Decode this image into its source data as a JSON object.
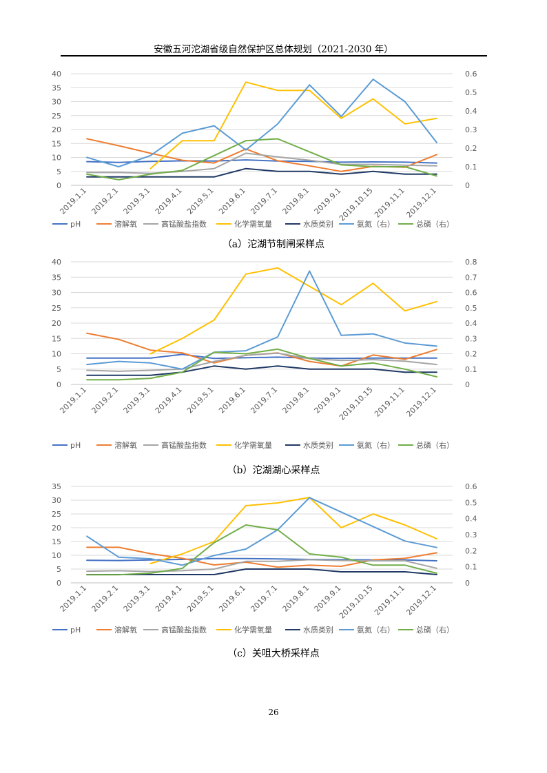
{
  "header": {
    "title": "安徽五河沱湖省级自然保护区总体规划（2021-2030 年）"
  },
  "page_number": "26",
  "colors": {
    "pH": "#4472C4",
    "溶解氧": "#ED7D31",
    "高锰酸盐指数": "#A5A5A5",
    "化学需氧量": "#FFC000",
    "水质类别": "#1F3864",
    "氨氮（右）": "#5B9BD5",
    "总磷（右）": "#70AD47"
  },
  "chart_data": [
    {
      "type": "line",
      "caption": "（a）沱湖节制闸采样点",
      "categories": [
        "2019.1.1",
        "2019.2.1",
        "2019.3.1",
        "2019.4.1",
        "2019.5.1",
        "2019.6.1",
        "2019.7.1",
        "2019.8.1",
        "2019.9.1",
        "2019.10.15",
        "2019.11.1",
        "2019.12.1"
      ],
      "y_left": {
        "min": 0,
        "max": 40,
        "ticks": [
          "0",
          "5",
          "10",
          "15",
          "20",
          "25",
          "30",
          "35",
          "40"
        ]
      },
      "y_right": {
        "min": 0,
        "max": 0.6,
        "ticks": [
          "0",
          "0.1",
          "0.2",
          "0.3",
          "0.4",
          "0.5",
          "0.6"
        ]
      },
      "grid": true,
      "legend_position": "bottom",
      "series": [
        {
          "name": "pH",
          "axis": "left",
          "values": [
            8.5,
            8.2,
            8.6,
            8.8,
            8.7,
            9.1,
            8.7,
            8.6,
            8.3,
            8.4,
            8.3,
            8.0
          ]
        },
        {
          "name": "溶解氧",
          "axis": "left",
          "values": [
            16.7,
            14.2,
            11.5,
            9.0,
            8.0,
            13.0,
            8.8,
            7.0,
            5.0,
            6.8,
            6.5,
            11.0
          ]
        },
        {
          "name": "高锰酸盐指数",
          "axis": "left",
          "values": [
            4.6,
            4.6,
            4.3,
            5.0,
            6.0,
            11.5,
            10.2,
            9.0,
            7.5,
            7.5,
            7.2,
            7.0
          ]
        },
        {
          "name": "化学需氧量",
          "axis": "left",
          "values": [
            null,
            null,
            6.0,
            16.0,
            16.0,
            37.0,
            34.0,
            34.0,
            24.0,
            31.0,
            22.0,
            24.0
          ]
        },
        {
          "name": "水质类别",
          "axis": "left",
          "values": [
            3,
            3,
            3,
            3,
            3,
            6,
            5,
            5,
            4,
            5,
            4,
            4
          ]
        },
        {
          "name": "氨氮（右）",
          "axis": "right",
          "values": [
            0.15,
            0.1,
            0.16,
            0.28,
            0.32,
            0.19,
            0.33,
            0.54,
            0.37,
            0.57,
            0.45,
            0.23
          ]
        },
        {
          "name": "总磷（右）",
          "axis": "right",
          "values": [
            0.06,
            0.03,
            0.06,
            0.08,
            0.16,
            0.24,
            0.25,
            0.18,
            0.11,
            0.1,
            0.1,
            0.05
          ]
        }
      ]
    },
    {
      "type": "line",
      "caption": "（b）沱湖湖心采样点",
      "categories": [
        "2019.1.1",
        "2019.2.1",
        "2019.3.1",
        "2019.4.1",
        "2019.5.1",
        "2019.6.1",
        "2019.7.1",
        "2019.8.1",
        "2019.9.1",
        "2019.10.15",
        "2019.11.1",
        "2019.12.1"
      ],
      "y_left": {
        "min": 0,
        "max": 40,
        "ticks": [
          "0",
          "5",
          "10",
          "15",
          "20",
          "25",
          "30",
          "35",
          "40"
        ]
      },
      "y_right": {
        "min": 0,
        "max": 0.8,
        "ticks": [
          "0",
          "0.1",
          "0.2",
          "0.3",
          "0.4",
          "0.5",
          "0.6",
          "0.7",
          "0.8"
        ]
      },
      "grid": true,
      "legend_position": "bottom",
      "series": [
        {
          "name": "pH",
          "axis": "left",
          "values": [
            8.6,
            8.6,
            8.6,
            9.8,
            8.5,
            8.7,
            8.9,
            8.6,
            8.5,
            8.6,
            8.6,
            8.6
          ]
        },
        {
          "name": "溶解氧",
          "axis": "left",
          "values": [
            16.7,
            14.7,
            11.2,
            10.3,
            7.0,
            9.5,
            10.3,
            7.5,
            6.0,
            9.6,
            8.2,
            11.4
          ]
        },
        {
          "name": "高锰酸盐指数",
          "axis": "left",
          "values": [
            4.6,
            4.3,
            4.6,
            5.0,
            7.5,
            9.5,
            10.2,
            8.4,
            7.8,
            8.1,
            7.6,
            6.5
          ]
        },
        {
          "name": "化学需氧量",
          "axis": "left",
          "values": [
            null,
            null,
            10.0,
            15.0,
            21.0,
            36.0,
            38.0,
            32.0,
            26.0,
            33.0,
            24.0,
            27.0
          ]
        },
        {
          "name": "水质类别",
          "axis": "left",
          "values": [
            3,
            3,
            3,
            4,
            6,
            5,
            6,
            5,
            5,
            5,
            4,
            4
          ]
        },
        {
          "name": "氨氮（右）",
          "axis": "right",
          "values": [
            0.13,
            0.15,
            0.14,
            0.1,
            0.21,
            0.22,
            0.31,
            0.74,
            0.32,
            0.33,
            0.27,
            0.25
          ]
        },
        {
          "name": "总磷（右）",
          "axis": "right",
          "values": [
            0.03,
            0.03,
            0.04,
            0.08,
            0.21,
            0.2,
            0.23,
            0.17,
            0.12,
            0.14,
            0.1,
            0.05
          ]
        }
      ]
    },
    {
      "type": "line",
      "caption": "（c）关咀大桥采样点",
      "categories": [
        "2019.1.1",
        "2019.2.1",
        "2019.3.1",
        "2019.4.1",
        "2019.5.1",
        "2019.6.1",
        "2019.7.1",
        "2019.8.1",
        "2019.9.1",
        "2019.10.15",
        "2019.11.1",
        "2019.12.1"
      ],
      "y_left": {
        "min": 0,
        "max": 35,
        "ticks": [
          "0",
          "5",
          "10",
          "15",
          "20",
          "25",
          "30",
          "35"
        ]
      },
      "y_right": {
        "min": 0,
        "max": 0.6,
        "ticks": [
          "0",
          "0.1",
          "0.2",
          "0.3",
          "0.4",
          "0.5",
          "0.6"
        ]
      },
      "grid": true,
      "legend_position": "bottom",
      "series": [
        {
          "name": "pH",
          "axis": "left",
          "values": [
            8.2,
            8.1,
            8.3,
            8.5,
            8.8,
            8.8,
            8.7,
            8.5,
            8.4,
            8.3,
            8.3,
            8.0
          ]
        },
        {
          "name": "溶解氧",
          "axis": "left",
          "values": [
            12.9,
            12.9,
            10.6,
            8.9,
            6.5,
            7.5,
            5.7,
            6.4,
            6.0,
            8.3,
            8.9,
            10.9
          ]
        },
        {
          "name": "高锰酸盐指数",
          "axis": "left",
          "values": [
            4.2,
            4.4,
            4.1,
            4.4,
            5.0,
            7.8,
            7.8,
            8.4,
            8.1,
            8.0,
            8.0,
            5.3
          ]
        },
        {
          "name": "化学需氧量",
          "axis": "left",
          "values": [
            null,
            null,
            7.0,
            10.5,
            15.0,
            28.0,
            29.0,
            31.0,
            20.0,
            25.0,
            21.0,
            16.0
          ]
        },
        {
          "name": "水质类别",
          "axis": "left",
          "values": [
            3,
            3,
            3,
            3,
            3,
            5,
            5,
            5,
            4,
            4,
            4,
            3
          ]
        },
        {
          "name": "氨氮（右）",
          "axis": "right",
          "values": [
            0.29,
            0.16,
            0.15,
            0.11,
            0.17,
            0.21,
            0.33,
            0.53,
            0.44,
            0.35,
            0.26,
            0.22
          ]
        },
        {
          "name": "总磷（右）",
          "axis": "right",
          "values": [
            0.05,
            0.05,
            0.06,
            0.09,
            0.25,
            0.36,
            0.33,
            0.18,
            0.16,
            0.11,
            0.11,
            0.06
          ]
        }
      ]
    }
  ]
}
